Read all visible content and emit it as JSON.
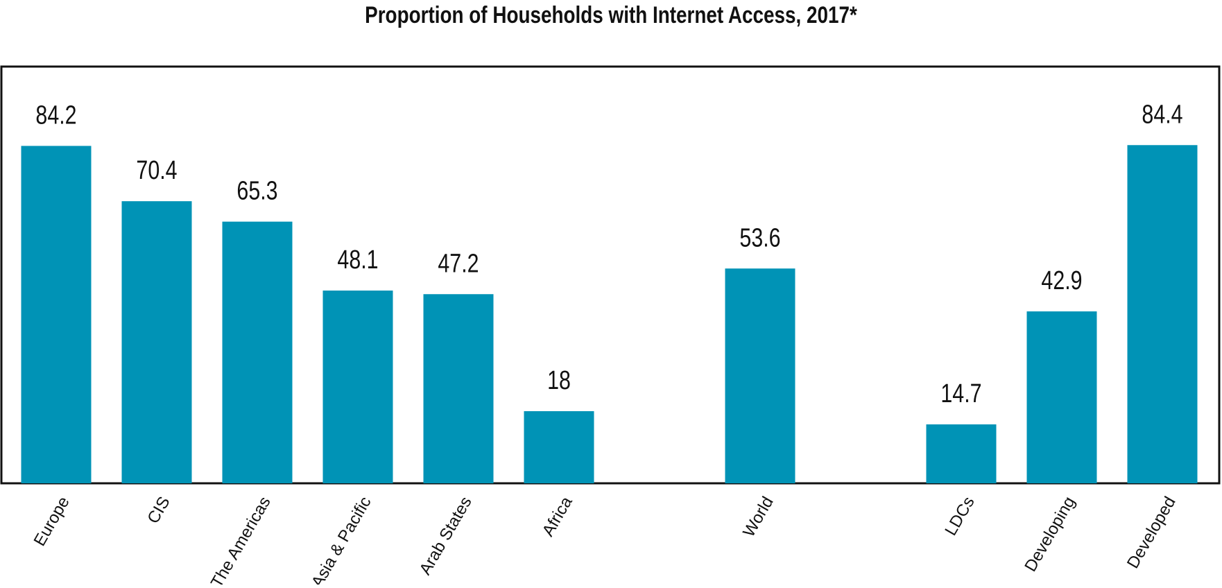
{
  "chart_data": {
    "type": "bar",
    "title": "Proportion of Households with Internet Access, 2017*",
    "categories": [
      "Europe",
      "CIS",
      "The Americas",
      "Asia & Pacific",
      "Arab States",
      "Africa",
      null,
      "World",
      null,
      "LDCs",
      "Developing",
      "Developed"
    ],
    "values": [
      84.2,
      70.4,
      65.3,
      48.1,
      47.2,
      18,
      null,
      53.6,
      null,
      14.7,
      42.9,
      84.4
    ],
    "color": "#0093b6",
    "ylim": [
      0,
      104
    ]
  }
}
